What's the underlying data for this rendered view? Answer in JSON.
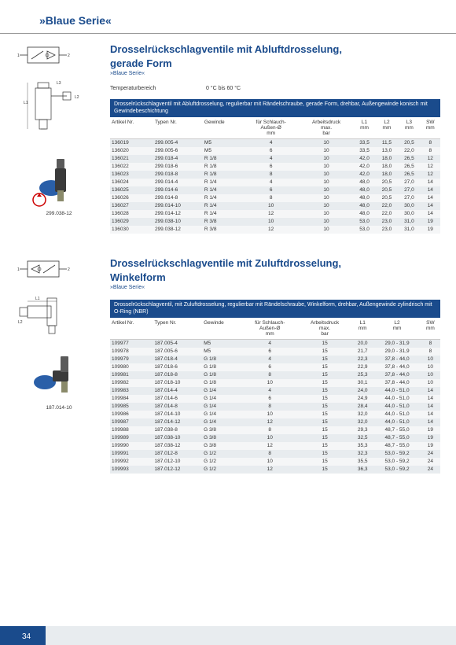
{
  "header": {
    "title": "»Blaue Serie«"
  },
  "page_number": "34",
  "section1": {
    "title_line1": "Drosselrückschlagventile mit Abluftdrosselung,",
    "title_line2": "gerade Form",
    "series": "»Blaue Serie«",
    "temp_label": "Temperaturbereich",
    "temp_value": "0 °C bis 60 °C",
    "banner": "Drosselrückschlagventil mit Abluftdrosselung, regulierbar mit Rändelschraube, gerade Form, drehbar, Außengewinde konisch mit Gewindebeschichtung",
    "caption": "299.038-12",
    "columns": [
      "Artikel Nr.",
      "Typen Nr.",
      "Gewinde",
      "für Schlauch-\nAußen-Ø\nmm",
      "Arbeitsdruck\nmax.\nbar",
      "L1\nmm",
      "L2\nmm",
      "L3\nmm",
      "SW\nmm"
    ],
    "rows": [
      [
        "136019",
        "299.005-4",
        "M5",
        "4",
        "10",
        "33,5",
        "11,5",
        "20,5",
        "8"
      ],
      [
        "136020",
        "299.005-6",
        "M5",
        "6",
        "10",
        "33,5",
        "13,0",
        "22,0",
        "8"
      ],
      [
        "136021",
        "299.018-4",
        "R 1/8",
        "4",
        "10",
        "42,0",
        "18,0",
        "26,5",
        "12"
      ],
      [
        "136022",
        "299.018-6",
        "R 1/8",
        "6",
        "10",
        "42,0",
        "18,0",
        "26,5",
        "12"
      ],
      [
        "136023",
        "299.018-8",
        "R 1/8",
        "8",
        "10",
        "42,0",
        "18,0",
        "26,5",
        "12"
      ],
      [
        "136024",
        "299.014-4",
        "R 1/4",
        "4",
        "10",
        "48,0",
        "20,5",
        "27,0",
        "14"
      ],
      [
        "136025",
        "299.014-6",
        "R 1/4",
        "6",
        "10",
        "48,0",
        "20,5",
        "27,0",
        "14"
      ],
      [
        "136026",
        "299.014-8",
        "R 1/4",
        "8",
        "10",
        "48,0",
        "20,5",
        "27,0",
        "14"
      ],
      [
        "136027",
        "299.014-10",
        "R 1/4",
        "10",
        "10",
        "48,0",
        "22,0",
        "30,0",
        "14"
      ],
      [
        "136028",
        "299.014-12",
        "R 1/4",
        "12",
        "10",
        "48,0",
        "22,0",
        "30,0",
        "14"
      ],
      [
        "136029",
        "299.038-10",
        "R 3/8",
        "10",
        "10",
        "53,0",
        "23,0",
        "31,0",
        "19"
      ],
      [
        "136030",
        "299.038-12",
        "R 3/8",
        "12",
        "10",
        "53,0",
        "23,0",
        "31,0",
        "19"
      ]
    ]
  },
  "section2": {
    "title_line1": "Drosselrückschlagventile mit Zuluftdrosselung,",
    "title_line2": "Winkelform",
    "series": "»Blaue Serie«",
    "banner": "Drosselrückschlagventil, mit Zuluftdrosselung, regulierbar mit Rändelschraube, Winkelform, drehbar, Außengewinde zylindrisch mit O-Ring (NBR)",
    "caption": "187.014-10",
    "columns": [
      "Artikel Nr.",
      "Typen Nr.",
      "Gewinde",
      "für Schlauch-\nAußen-Ø\nmm",
      "Arbeitsdruck\nmax.\nbar",
      "L1\nmm",
      "L2\nmm",
      "SW\nmm"
    ],
    "rows": [
      [
        "109977",
        "187.005-4",
        "M5",
        "4",
        "15",
        "20,0",
        "29,0 - 31,9",
        "8"
      ],
      [
        "109978",
        "187.005-6",
        "M5",
        "6",
        "15",
        "21,7",
        "29,0 - 31,9",
        "8"
      ],
      [
        "109979",
        "187.018-4",
        "G 1/8",
        "4",
        "15",
        "22,3",
        "37,8 - 44,0",
        "10"
      ],
      [
        "109980",
        "187.018-6",
        "G 1/8",
        "6",
        "15",
        "22,9",
        "37,8 - 44,0",
        "10"
      ],
      [
        "109981",
        "187.018-8",
        "G 1/8",
        "8",
        "15",
        "25,3",
        "37,8 - 44,0",
        "10"
      ],
      [
        "109982",
        "187.018-10",
        "G 1/8",
        "10",
        "15",
        "30,1",
        "37,8 - 44,0",
        "10"
      ],
      [
        "109983",
        "187.014-4",
        "G 1/4",
        "4",
        "15",
        "24,0",
        "44,0 - 51,0",
        "14"
      ],
      [
        "109984",
        "187.014-6",
        "G 1/4",
        "6",
        "15",
        "24,9",
        "44,0 - 51,0",
        "14"
      ],
      [
        "109985",
        "187.014-8",
        "G 1/4",
        "8",
        "15",
        "28,4",
        "44,0 - 51,0",
        "14"
      ],
      [
        "109986",
        "187.014-10",
        "G 1/4",
        "10",
        "15",
        "32,0",
        "44,0 - 51,0",
        "14"
      ],
      [
        "109987",
        "187.014-12",
        "G 1/4",
        "12",
        "15",
        "32,0",
        "44,0 - 51,0",
        "14"
      ],
      [
        "109988",
        "187.038-8",
        "G 3/8",
        "8",
        "15",
        "29,3",
        "48,7 - 55,0",
        "19"
      ],
      [
        "109989",
        "187.038-10",
        "G 3/8",
        "10",
        "15",
        "32,5",
        "48,7 - 55,0",
        "19"
      ],
      [
        "109990",
        "187.038-12",
        "G 3/8",
        "12",
        "15",
        "35,3",
        "48,7 - 55,0",
        "19"
      ],
      [
        "109991",
        "187.012-8",
        "G 1/2",
        "8",
        "15",
        "32,3",
        "53,0 - 59,2",
        "24"
      ],
      [
        "109992",
        "187.012-10",
        "G 1/2",
        "10",
        "15",
        "35,5",
        "53,0 - 59,2",
        "24"
      ],
      [
        "109993",
        "187.012-12",
        "G 1/2",
        "12",
        "15",
        "36,3",
        "53,0 - 59,2",
        "24"
      ]
    ]
  }
}
